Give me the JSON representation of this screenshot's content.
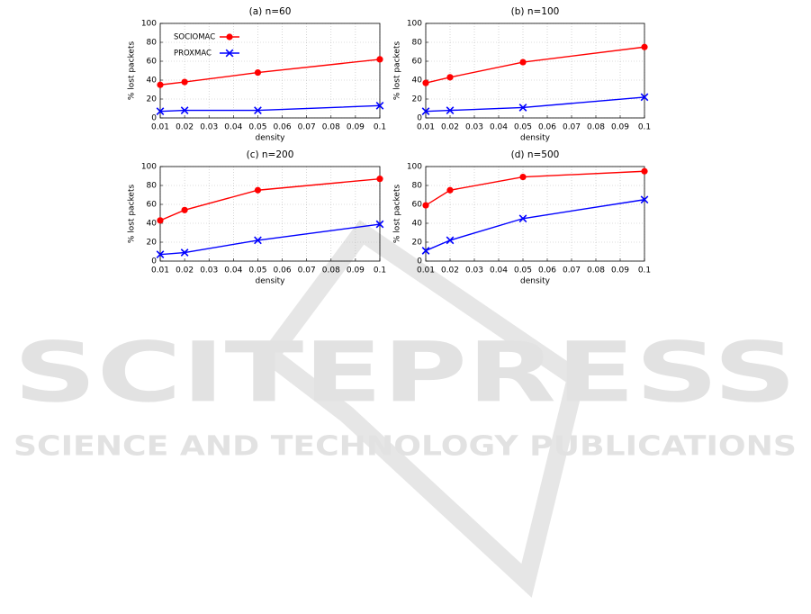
{
  "watermark": {
    "title": "SCITEPRESS",
    "subtitle": "SCIENCE AND TECHNOLOGY PUBLICATIONS"
  },
  "chart_data": [
    {
      "type": "line",
      "title": "(a) n=60",
      "x_label": "density",
      "y_label": "% lost packets",
      "x": [
        0.01,
        0.02,
        0.05,
        0.1
      ],
      "xlim": [
        0.01,
        0.1
      ],
      "xticks": [
        0.01,
        0.02,
        0.03,
        0.04,
        0.05,
        0.06,
        0.07,
        0.08,
        0.09,
        0.1
      ],
      "ylim": [
        0,
        100
      ],
      "yticks": [
        0,
        20,
        40,
        60,
        80,
        100
      ],
      "grid": true,
      "legend": "upper left",
      "series": [
        {
          "name": "SOCIOMAC",
          "color": "#ff0000",
          "marker": "circle",
          "values": [
            35,
            38,
            48,
            62
          ]
        },
        {
          "name": "PROXMAC",
          "color": "#0000ff",
          "marker": "x",
          "values": [
            7,
            8,
            8,
            13
          ]
        }
      ]
    },
    {
      "type": "line",
      "title": "(b) n=100",
      "x_label": "density",
      "y_label": "% lost packets",
      "x": [
        0.01,
        0.02,
        0.05,
        0.1
      ],
      "xlim": [
        0.01,
        0.1
      ],
      "xticks": [
        0.01,
        0.02,
        0.03,
        0.04,
        0.05,
        0.06,
        0.07,
        0.08,
        0.09,
        0.1
      ],
      "ylim": [
        0,
        100
      ],
      "yticks": [
        0,
        20,
        40,
        60,
        80,
        100
      ],
      "grid": true,
      "series": [
        {
          "color": "#ff0000",
          "marker": "circle",
          "values": [
            37,
            43,
            59,
            75
          ]
        },
        {
          "color": "#0000ff",
          "marker": "x",
          "values": [
            7,
            8,
            11,
            22
          ]
        }
      ]
    },
    {
      "type": "line",
      "title": "(c) n=200",
      "x_label": "density",
      "y_label": "% lost packets",
      "x": [
        0.01,
        0.02,
        0.05,
        0.1
      ],
      "xlim": [
        0.01,
        0.1
      ],
      "xticks": [
        0.01,
        0.02,
        0.03,
        0.04,
        0.05,
        0.06,
        0.07,
        0.08,
        0.09,
        0.1
      ],
      "ylim": [
        0,
        100
      ],
      "yticks": [
        0,
        20,
        40,
        60,
        80,
        100
      ],
      "grid": true,
      "series": [
        {
          "color": "#ff0000",
          "marker": "circle",
          "values": [
            43,
            54,
            75,
            87
          ]
        },
        {
          "color": "#0000ff",
          "marker": "x",
          "values": [
            7,
            9,
            22,
            39
          ]
        }
      ]
    },
    {
      "type": "line",
      "title": "(d) n=500",
      "x_label": "density",
      "y_label": "% lost packets",
      "x": [
        0.01,
        0.02,
        0.05,
        0.1
      ],
      "xlim": [
        0.01,
        0.1
      ],
      "xticks": [
        0.01,
        0.02,
        0.03,
        0.04,
        0.05,
        0.06,
        0.07,
        0.08,
        0.09,
        0.1
      ],
      "ylim": [
        0,
        100
      ],
      "yticks": [
        0,
        20,
        40,
        60,
        80,
        100
      ],
      "grid": true,
      "series": [
        {
          "color": "#ff0000",
          "marker": "circle",
          "values": [
            59,
            75,
            89,
            95
          ]
        },
        {
          "color": "#0000ff",
          "marker": "x",
          "values": [
            11,
            22,
            45,
            65
          ]
        }
      ]
    }
  ]
}
